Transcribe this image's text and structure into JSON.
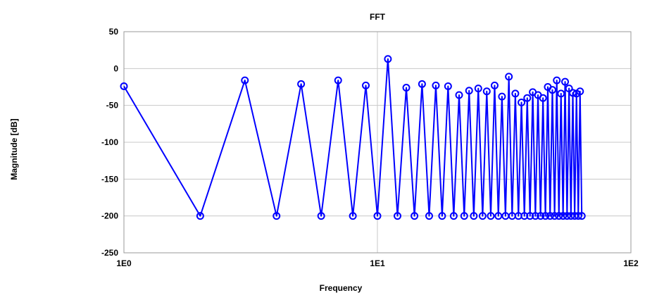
{
  "chart_data": {
    "type": "line",
    "title": "FFT",
    "xlabel": "Frequency",
    "ylabel": "Magnitude [dB]",
    "xscale": "log",
    "xlim": [
      1,
      100
    ],
    "ylim": [
      -250,
      50
    ],
    "x_tick_labels": [
      "1E0",
      "1E1",
      "1E2"
    ],
    "y_ticks": [
      50,
      0,
      -50,
      -100,
      -150,
      -200,
      -250
    ],
    "grid": true,
    "legend": "none",
    "series": [
      {
        "color": "#0000ff",
        "marker": "circle-open",
        "x": [
          1,
          2,
          3,
          4,
          5,
          6,
          7,
          8,
          9,
          10,
          11,
          12,
          13,
          14,
          15,
          16,
          17,
          18,
          19,
          20,
          21,
          22,
          23,
          24,
          25,
          26,
          27,
          28,
          29,
          30,
          31,
          32,
          33,
          34,
          35,
          36,
          37,
          38,
          39,
          40,
          41,
          42,
          43,
          44,
          45,
          46,
          47,
          48,
          49,
          50,
          51,
          52,
          53,
          54,
          55,
          56,
          57,
          58,
          59,
          60,
          61,
          62,
          63,
          64
        ],
        "y": [
          -24,
          -200,
          -16,
          -200,
          -21,
          -200,
          -16,
          -200,
          -23,
          -200,
          13,
          -200,
          -26,
          -200,
          -21,
          -200,
          -23,
          -200,
          -24,
          -200,
          -36,
          -200,
          -30,
          -200,
          -27,
          -200,
          -31,
          -200,
          -23,
          -200,
          -38,
          -200,
          -11,
          -200,
          -34,
          -200,
          -46,
          -200,
          -40,
          -200,
          -32,
          -200,
          -36,
          -200,
          -40,
          -200,
          -25,
          -200,
          -29,
          -200,
          -16,
          -200,
          -34,
          -200,
          -18,
          -200,
          -27,
          -200,
          -33,
          -200,
          -34,
          -200,
          -31,
          -200
        ]
      }
    ]
  }
}
